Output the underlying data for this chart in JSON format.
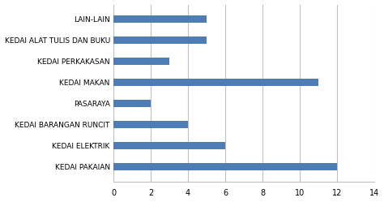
{
  "categories": [
    "KEDAI PAKAIAN",
    "KEDAI ELEKTRIK",
    "KEDAI BARANGAN RUNCIT",
    "PASARAYA",
    "KEDAI MAKAN",
    "KEDAI PERKAKASAN",
    "KEDAI ALAT TULIS DAN BUKU",
    "LAIN-LAIN"
  ],
  "values": [
    12,
    6,
    4,
    2,
    11,
    3,
    5,
    5
  ],
  "bar_color": "#4e7db5",
  "xlim": [
    0,
    14
  ],
  "xticks": [
    0,
    2,
    4,
    6,
    8,
    10,
    12,
    14
  ],
  "background_color": "#ffffff",
  "label_fontsize": 6.5,
  "tick_fontsize": 7,
  "grid_color": "#c0c0c0",
  "bar_height": 0.35
}
